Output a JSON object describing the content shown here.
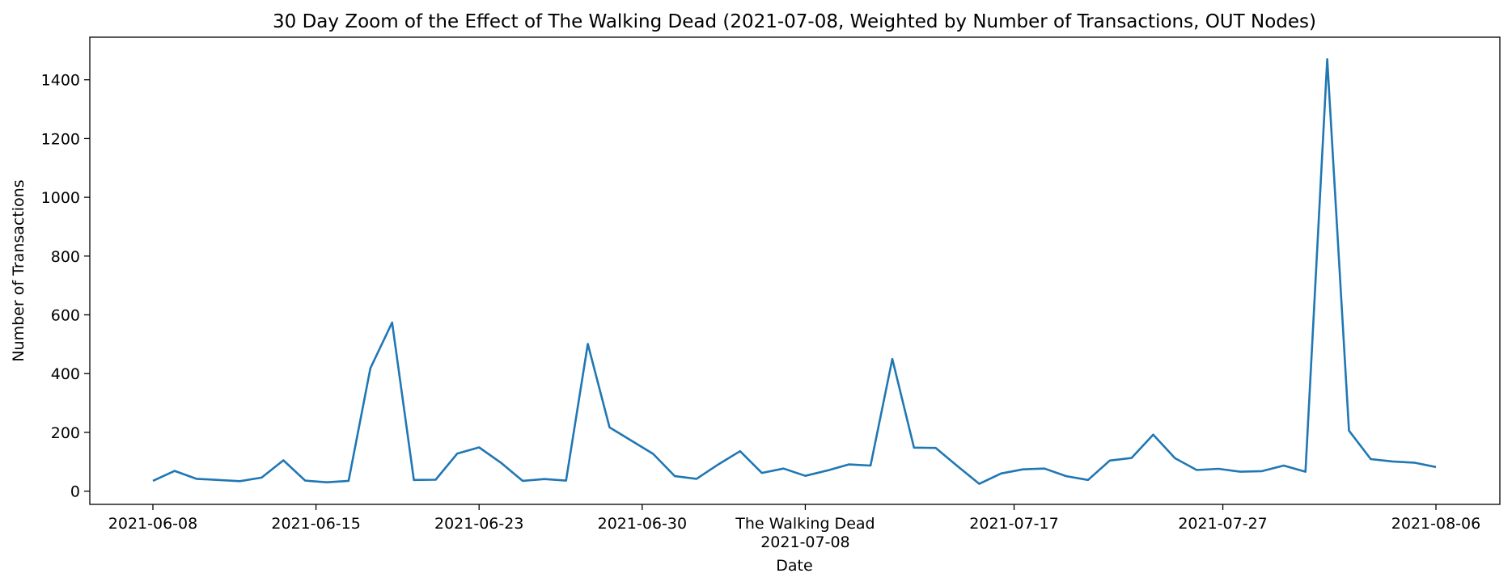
{
  "chart_data": {
    "type": "line",
    "title": "30 Day Zoom of the Effect of The Walking Dead (2021-07-08, Weighted by Number of Transactions, OUT Nodes)",
    "xlabel": "Date",
    "ylabel": "Number of Transactions",
    "ylim": [
      -45,
      1545
    ],
    "y_ticks": [
      0,
      200,
      400,
      600,
      800,
      1000,
      1200,
      1400
    ],
    "x_ticks": [
      {
        "x": 0,
        "label": "2021-06-08"
      },
      {
        "x": 7.5,
        "label": "2021-06-15"
      },
      {
        "x": 15,
        "label": "2021-06-23"
      },
      {
        "x": 22.5,
        "label": "2021-06-30"
      },
      {
        "x": 30,
        "label": "2021-07-08"
      },
      {
        "x": 39.6,
        "label": "2021-07-17"
      },
      {
        "x": 49.2,
        "label": "2021-07-27"
      },
      {
        "x": 59,
        "label": "2021-08-06"
      }
    ],
    "event": {
      "x": 30,
      "label": "The Walking Dead"
    },
    "grid": false,
    "color": "#1f77b4",
    "values": [
      35,
      69,
      42,
      38,
      34,
      46,
      105,
      36,
      30,
      35,
      418,
      574,
      38,
      39,
      128,
      149,
      97,
      35,
      41,
      36,
      501,
      217,
      172,
      127,
      51,
      42,
      91,
      136,
      62,
      77,
      52,
      70,
      91,
      87,
      450,
      148,
      147,
      85,
      25,
      60,
      74,
      77,
      51,
      38,
      104,
      113,
      192,
      112,
      72,
      76,
      66,
      68,
      87,
      66,
      1470,
      206,
      109,
      101,
      97,
      82
    ]
  }
}
